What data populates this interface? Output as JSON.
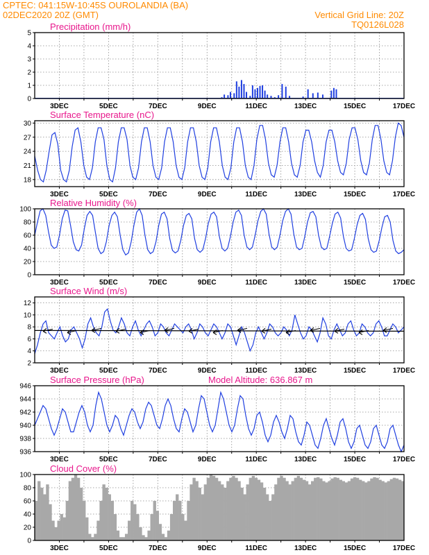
{
  "header": {
    "line1_left": "CPTEC:    041:15W-10:45S    OUROLANDIA (BA)",
    "line2_left": "02DEC2020 20Z (GMT)",
    "line1_right": "Vertical Grid Line: 20Z",
    "line2_right": "TQ0126L028"
  },
  "x_ticks": [
    "3DEC",
    "5DEC",
    "7DEC",
    "9DEC",
    "11DEC",
    "13DEC",
    "15DEC",
    "17DEC"
  ],
  "colors": {
    "series": "#1f3fe0",
    "cloud": "#a8a8a8",
    "header": "#ff8a00",
    "title": "#e8178c"
  },
  "chart_data": [
    {
      "id": "precip",
      "type": "bar",
      "title": "Precipitation (mm/h)",
      "ylim": [
        0,
        5
      ],
      "yticks": [
        0,
        1,
        2,
        3,
        4,
        5
      ],
      "xlim_days": [
        2.0,
        17.0
      ],
      "x": [
        9.6,
        9.7,
        9.85,
        9.95,
        10.1,
        10.2,
        10.3,
        10.4,
        10.5,
        10.6,
        10.75,
        10.85,
        10.95,
        11.05,
        11.15,
        11.25,
        11.35,
        11.45,
        11.6,
        11.75,
        11.9,
        12.05,
        12.2,
        12.35,
        12.9,
        13.1,
        13.3,
        13.5,
        13.7,
        14.05,
        14.15,
        14.25
      ],
      "values": [
        0.1,
        0.3,
        0.25,
        0.5,
        0.4,
        1.3,
        0.9,
        1.4,
        1.1,
        0.5,
        0.2,
        1.0,
        0.7,
        0.8,
        0.95,
        1.0,
        0.6,
        0.3,
        0.2,
        0.1,
        0.25,
        1.1,
        0.9,
        0.2,
        0.15,
        0.7,
        0.4,
        0.45,
        0.3,
        0.6,
        0.8,
        0.7
      ]
    },
    {
      "id": "temp",
      "type": "line",
      "title": "Surface Temperature (nC)",
      "ylim": [
        16.5,
        30.5
      ],
      "yticks": [
        18,
        21,
        24,
        27,
        30
      ],
      "xlim_days": [
        2.0,
        17.0
      ],
      "sample_step_hours": 3,
      "values": [
        23,
        20,
        18,
        17.5,
        20,
        24,
        27.5,
        28,
        25.5,
        20,
        18,
        17.5,
        20,
        25,
        28.5,
        29,
        26,
        21,
        18.5,
        18,
        20.5,
        26,
        29,
        29,
        26.5,
        21,
        18,
        17.5,
        20.5,
        26,
        29,
        29,
        26.5,
        21,
        18.5,
        18,
        20.5,
        26,
        29,
        29,
        26,
        21,
        18.5,
        18,
        20.5,
        26,
        29,
        29,
        26,
        21,
        18.5,
        18,
        20.5,
        26,
        29,
        29,
        26,
        21,
        18.5,
        18,
        20.5,
        26,
        29,
        29,
        26,
        21,
        18.5,
        18,
        20.5,
        26,
        29,
        29,
        26,
        21,
        18.5,
        18,
        21,
        26.5,
        29.5,
        29.5,
        26.5,
        21.5,
        19,
        18.5,
        21,
        26,
        29,
        29,
        26,
        21.5,
        19,
        18.5,
        21,
        26,
        28.5,
        28.5,
        26,
        22,
        19.5,
        18.5,
        21,
        26,
        28.5,
        28.5,
        26,
        22,
        19.5,
        19,
        21.5,
        26.5,
        29,
        29,
        26.5,
        22,
        19.5,
        19,
        21.5,
        26.5,
        29.5,
        29.5,
        26.5,
        22,
        19.5,
        19,
        22,
        27,
        30,
        29.5,
        27
      ]
    },
    {
      "id": "rh",
      "type": "line",
      "title": "Relative Humidity (%)",
      "ylim": [
        0,
        100
      ],
      "yticks": [
        0,
        20,
        40,
        60,
        80,
        100
      ],
      "xlim_days": [
        2.0,
        17.0
      ],
      "sample_step_hours": 3,
      "values": [
        60,
        80,
        97,
        100,
        90,
        65,
        45,
        40,
        42,
        60,
        85,
        98,
        97,
        75,
        50,
        38,
        36,
        45,
        70,
        90,
        96,
        90,
        65,
        40,
        32,
        35,
        50,
        75,
        90,
        95,
        88,
        60,
        38,
        30,
        33,
        50,
        75,
        95,
        100,
        90,
        60,
        38,
        32,
        35,
        50,
        75,
        92,
        95,
        85,
        55,
        37,
        33,
        36,
        52,
        75,
        90,
        93,
        85,
        55,
        38,
        34,
        38,
        55,
        78,
        92,
        95,
        88,
        58,
        40,
        36,
        40,
        58,
        80,
        95,
        98,
        90,
        60,
        42,
        38,
        42,
        60,
        82,
        96,
        100,
        92,
        62,
        42,
        38,
        42,
        60,
        82,
        96,
        100,
        92,
        62,
        42,
        38,
        40,
        58,
        80,
        94,
        96,
        88,
        60,
        42,
        38,
        40,
        58,
        78,
        92,
        95,
        86,
        58,
        40,
        36,
        38,
        55,
        76,
        90,
        93,
        84,
        55,
        38,
        34,
        36,
        52,
        72,
        88,
        90,
        80,
        52,
        36,
        32,
        34,
        38
      ]
    },
    {
      "id": "wind",
      "type": "line",
      "title": "Surface Wind (m/s)",
      "ylim": [
        2,
        13
      ],
      "yticks": [
        2,
        4,
        6,
        8,
        10,
        12
      ],
      "xlim_days": [
        2.0,
        17.0
      ],
      "sample_step_hours": 3,
      "values": [
        3.5,
        5,
        7,
        8.5,
        9,
        7,
        6.5,
        6,
        7,
        8,
        6.5,
        5.5,
        6,
        7.5,
        8,
        7,
        6,
        4.5,
        6,
        8.5,
        9.5,
        8,
        7,
        6.5,
        8,
        10.5,
        11,
        9,
        7.5,
        7,
        8,
        9.5,
        8.5,
        7,
        6.5,
        8,
        9,
        7.5,
        6.5,
        7.5,
        8.5,
        9,
        8,
        6.5,
        7,
        8.5,
        8,
        7,
        6.5,
        7.5,
        8.5,
        8,
        7.5,
        7,
        8,
        8.5,
        7.5,
        6,
        7,
        8.5,
        8,
        7,
        6.5,
        7.5,
        8.5,
        8,
        7,
        6,
        7,
        8.5,
        8,
        6.5,
        5,
        6.5,
        8,
        7,
        5.5,
        4,
        5,
        7,
        8,
        7,
        6,
        7,
        8.5,
        8,
        7,
        6.5,
        7,
        8,
        7.5,
        6.5,
        7.5,
        10,
        8.5,
        7,
        6,
        6.5,
        8,
        7.5,
        6.5,
        5.5,
        7,
        9.5,
        8.5,
        6.5,
        6,
        7.5,
        8.5,
        7.5,
        6.5,
        7,
        8.5,
        9,
        7.5,
        6.5,
        7,
        8.5,
        8,
        7,
        6.5,
        7,
        8.5,
        9,
        8,
        6.5,
        6.5,
        7.5,
        8.5,
        8,
        7,
        7.5,
        8
      ]
    },
    {
      "id": "pres",
      "type": "line",
      "title": "Surface Pressure (hPa)",
      "annotation": "Model Altitude: 636.867  m",
      "ylim": [
        936,
        946
      ],
      "yticks": [
        936,
        938,
        940,
        942,
        944,
        946
      ],
      "xlim_days": [
        2.0,
        17.0
      ],
      "sample_step_hours": 3,
      "values": [
        940,
        941,
        942,
        943,
        942.5,
        941,
        939.5,
        938.5,
        939.5,
        941,
        942.5,
        942,
        940.5,
        939,
        939,
        940.5,
        942,
        943,
        942,
        940,
        939,
        940,
        943,
        945,
        944,
        942,
        940,
        939,
        940,
        941.5,
        941,
        939.5,
        938.5,
        940,
        941.5,
        942.5,
        942,
        940.5,
        939.5,
        940.5,
        942.5,
        943.5,
        943,
        941.5,
        940,
        939.5,
        941,
        943,
        944,
        943,
        941,
        939.5,
        939,
        941,
        942.5,
        942,
        940.5,
        939,
        940,
        942.5,
        944.5,
        944,
        942,
        940,
        939,
        940,
        942.5,
        945,
        944,
        942,
        940,
        939,
        940,
        942.5,
        944.5,
        944,
        941.5,
        939.5,
        938.5,
        939.5,
        941.5,
        942,
        940.5,
        938.5,
        937.5,
        938.5,
        940.5,
        941.5,
        940.5,
        939,
        938,
        939.5,
        941.5,
        941,
        939,
        937.5,
        937,
        938.5,
        940.5,
        940,
        938.5,
        937,
        936.5,
        938,
        940,
        941,
        939.5,
        938,
        937,
        938.5,
        940.5,
        941,
        939.5,
        937.5,
        936.5,
        937.5,
        939.5,
        940,
        938.5,
        937,
        936.5,
        937.5,
        939.5,
        940,
        938.5,
        937,
        936.5,
        937.5,
        939.5,
        940,
        938.5,
        937,
        936,
        937
      ]
    },
    {
      "id": "cloud",
      "type": "bar",
      "title": "Cloud Cover (%)",
      "ylim": [
        0,
        100
      ],
      "yticks": [
        0,
        20,
        40,
        60,
        80,
        100
      ],
      "xlim_days": [
        2.0,
        17.0
      ],
      "sample_step_hours": 3,
      "values": [
        60,
        90,
        80,
        70,
        85,
        55,
        30,
        20,
        30,
        40,
        35,
        60,
        90,
        95,
        100,
        95,
        80,
        60,
        35,
        10,
        5,
        10,
        30,
        60,
        85,
        80,
        70,
        60,
        40,
        15,
        5,
        5,
        10,
        30,
        60,
        55,
        40,
        20,
        8,
        5,
        15,
        40,
        60,
        45,
        25,
        10,
        5,
        15,
        40,
        60,
        70,
        60,
        40,
        30,
        60,
        85,
        95,
        90,
        80,
        70,
        85,
        95,
        100,
        98,
        95,
        90,
        85,
        80,
        90,
        95,
        98,
        95,
        90,
        80,
        70,
        85,
        95,
        98,
        95,
        92,
        88,
        80,
        70,
        60,
        70,
        85,
        95,
        98,
        95,
        90,
        85,
        90,
        95,
        98,
        95,
        92,
        90,
        85,
        90,
        95,
        96,
        94,
        90,
        88,
        90,
        94,
        96,
        95,
        92,
        90,
        88,
        90,
        94,
        96,
        95,
        92,
        90,
        88,
        90,
        94,
        96,
        95,
        92,
        90,
        88,
        90,
        93,
        95,
        94,
        92,
        90
      ]
    }
  ]
}
